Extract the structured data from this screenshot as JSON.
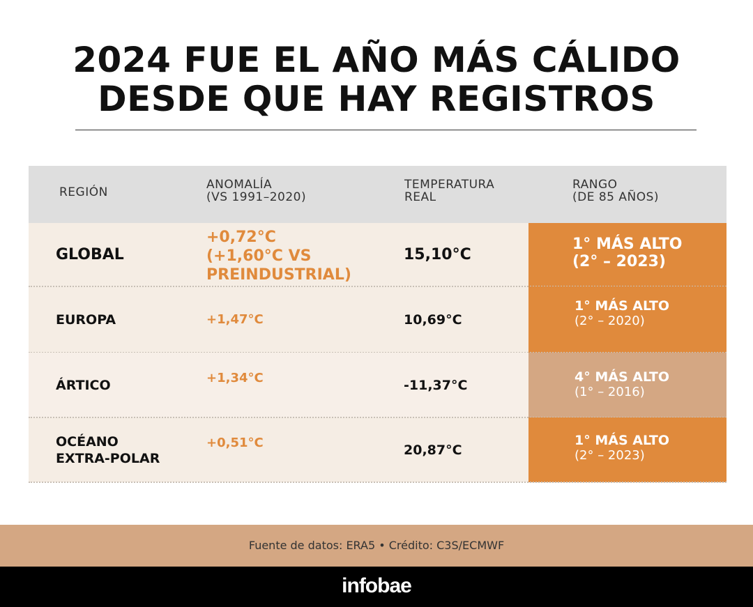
{
  "title": {
    "line1": "2024 FUE EL AÑO MÁS CÁLIDO",
    "line2": "DESDE QUE HAY REGISTROS"
  },
  "chart_data": {
    "type": "table",
    "columns": [
      {
        "label": "REGIÓN"
      },
      {
        "label": "ANOMALÍA",
        "sublabel": "(VS 1991–2020)"
      },
      {
        "label": "TEMPERATURA",
        "sublabel": "REAL"
      },
      {
        "label": "RANGO",
        "sublabel": "(DE 85 AÑOS)"
      }
    ],
    "rows": [
      {
        "region": "GLOBAL",
        "anomaly_lines": [
          "+0,72°C",
          "(+1,60°C VS",
          "PREINDUSTRIAL)"
        ],
        "temperature": "15,10°C",
        "rank_line1": "1° MÁS ALTO",
        "rank_line2": "(2° – 2023)",
        "rank_color": "#e08a3c"
      },
      {
        "region": "EUROPA",
        "anomaly_lines": [
          "+1,47°C"
        ],
        "temperature": "10,69°C",
        "rank_line1": "1° MÁS ALTO",
        "rank_line2": "(2° – 2020)",
        "rank_color": "#e08a3c"
      },
      {
        "region": "ÁRTICO",
        "anomaly_lines": [
          "+1,34°C"
        ],
        "temperature": "-11,37°C",
        "rank_line1": "4° MÁS ALTO",
        "rank_line2": "(1° – 2016)",
        "rank_color": "#d4a783"
      },
      {
        "region_lines": [
          "OCÉANO",
          "EXTRA-POLAR"
        ],
        "anomaly_lines": [
          "+0,51°C"
        ],
        "temperature": "20,87°C",
        "rank_line1": "1° MÁS ALTO",
        "rank_line2": "(2° – 2023)",
        "rank_color": "#e08a3c"
      }
    ]
  },
  "source": "Fuente de datos: ERA5 • Crédito: C3S/ECMWF",
  "logo": "infobae",
  "colors": {
    "accent_orange": "#e08a3c",
    "muted_tan": "#d4a783",
    "header_gray": "#dedede",
    "row_bg": "#f5ede4",
    "footer_black": "#000000"
  }
}
